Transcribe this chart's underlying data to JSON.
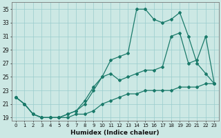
{
  "xlabel": "Humidex (Indice chaleur)",
  "bg_color": "#cce8e4",
  "grid_color": "#99cccc",
  "line_color": "#1a7a6a",
  "xlim": [
    -0.5,
    23.5
  ],
  "ylim": [
    18.5,
    36
  ],
  "xticks": [
    0,
    1,
    2,
    3,
    4,
    5,
    6,
    7,
    8,
    9,
    10,
    11,
    12,
    13,
    14,
    15,
    16,
    17,
    18,
    19,
    20,
    21,
    22,
    23
  ],
  "yticks": [
    19,
    21,
    23,
    25,
    27,
    29,
    31,
    33,
    35
  ],
  "line1_x": [
    0,
    1,
    2,
    3,
    4,
    5,
    6,
    7,
    8,
    9,
    10,
    11,
    12,
    13,
    14,
    15,
    16,
    17,
    18,
    19,
    20,
    21,
    22,
    23
  ],
  "line1_y": [
    22.0,
    21.0,
    19.5,
    19.0,
    19.0,
    19.0,
    19.0,
    19.5,
    19.5,
    20.0,
    21.0,
    21.5,
    22.0,
    22.5,
    22.5,
    23.0,
    23.0,
    23.0,
    23.0,
    23.5,
    23.5,
    23.5,
    24.0,
    24.0
  ],
  "line2_x": [
    0,
    1,
    2,
    3,
    4,
    5,
    6,
    7,
    8,
    9,
    10,
    11,
    12,
    13,
    14,
    15,
    16,
    17,
    18,
    19,
    20,
    21,
    22,
    23
  ],
  "line2_y": [
    22.0,
    21.0,
    19.5,
    19.0,
    19.0,
    19.0,
    19.5,
    20.0,
    21.0,
    23.0,
    25.0,
    27.5,
    28.0,
    28.5,
    35.0,
    35.0,
    33.5,
    33.0,
    33.5,
    34.5,
    31.0,
    27.0,
    25.5,
    24.0
  ],
  "line3_x": [
    0,
    1,
    2,
    3,
    4,
    5,
    6,
    7,
    8,
    9,
    10,
    11,
    12,
    13,
    14,
    15,
    16,
    17,
    18,
    19,
    20,
    21,
    22,
    23
  ],
  "line3_y": [
    22.0,
    21.0,
    19.5,
    19.0,
    19.0,
    19.0,
    19.5,
    20.0,
    21.5,
    23.5,
    25.0,
    25.5,
    24.5,
    25.0,
    25.5,
    26.0,
    26.0,
    26.5,
    31.0,
    31.5,
    27.0,
    27.5,
    31.0,
    24.0
  ]
}
